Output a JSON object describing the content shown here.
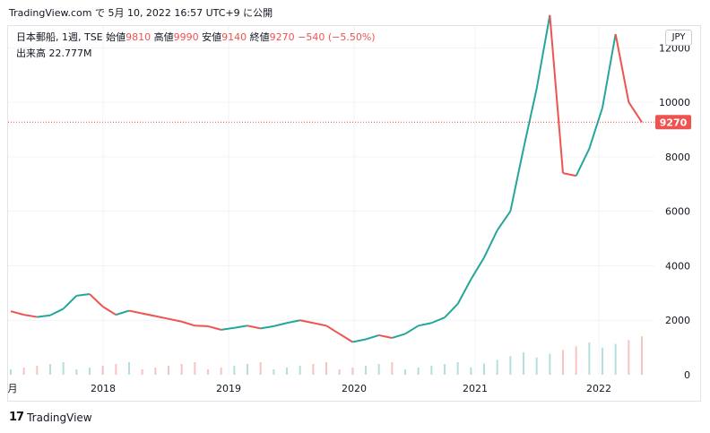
{
  "header": {
    "site": "TradingView.com",
    "timestamp": "で 5月 10, 2022 16:57 UTC+9 に公開"
  },
  "legend": {
    "symbol": "日本郵船, 1週, TSE",
    "open_label": "始値",
    "open": "9810",
    "high_label": "高値",
    "high": "9990",
    "low_label": "安値",
    "low": "9140",
    "close_label": "終値",
    "close": "9270",
    "change": "−540 (−5.50%)",
    "volume_label": "出来高",
    "volume": "22.777M"
  },
  "currency": "JPY",
  "price_badge": "9270",
  "footer": {
    "logo_text": "TradingView"
  },
  "colors": {
    "up": "#26a69a",
    "down": "#ef5350",
    "grid": "#f0f3fa"
  },
  "chart_data": {
    "type": "line",
    "title": "日本郵船, 1週, TSE",
    "x_tick_labels": [
      "月",
      "2018",
      "2019",
      "2020",
      "2021",
      "2022"
    ],
    "y_tick_labels": [
      "0",
      "2000",
      "4000",
      "6000",
      "8000",
      "10000",
      "12000"
    ],
    "ylim": [
      0,
      12800
    ],
    "last_price": 9270,
    "series": [
      {
        "values": [
          2330,
          2200,
          2120,
          2180,
          2420,
          2900,
          2960,
          2500,
          2200,
          2350,
          2250,
          2150,
          2050,
          1950,
          1800,
          1780,
          1650,
          1720,
          1800,
          1700,
          1780,
          1900,
          2000,
          1900,
          1800,
          1500,
          1200,
          1300,
          1450,
          1350,
          1500,
          1800,
          1900,
          2100,
          2600,
          3500,
          4300,
          5300,
          6000,
          8300,
          10500,
          13200,
          7400,
          7300,
          8300,
          9800,
          12500,
          10000,
          9270
        ]
      }
    ]
  }
}
